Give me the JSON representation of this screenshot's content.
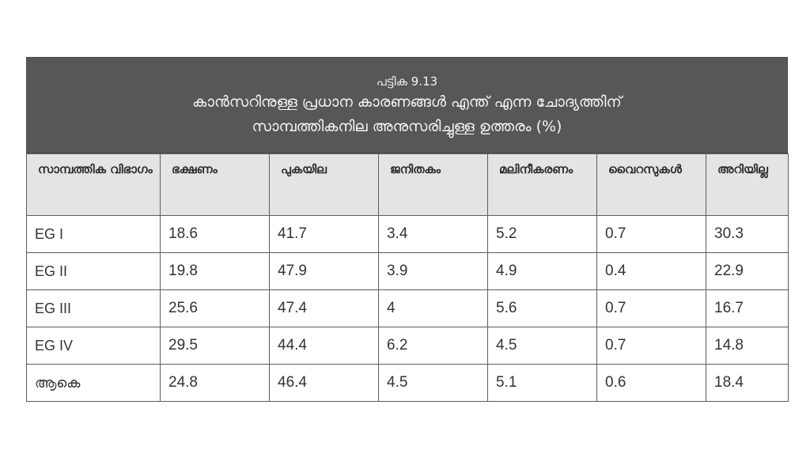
{
  "table": {
    "number_label": "പട്ടിക 9.13",
    "title_line1": "കാൻസറിനുള്ള പ്രധാന കാരണങ്ങൾ എന്ത് എന്ന ചോദ്യത്തിന്",
    "title_line2": "സാമ്പത്തികനില അനുസരിച്ചുള്ള ഉത്തരം (%)",
    "columns": [
      "സാമ്പത്തിക വിഭാഗം",
      "ഭക്ഷണം",
      "പുകയില",
      "ജനിതകം",
      "മലിനീകരണം",
      "വൈറസുകൾ",
      "അറിയില്ല"
    ],
    "rows": [
      [
        "EG I",
        "18.6",
        "41.7",
        "3.4",
        "5.2",
        "0.7",
        "30.3"
      ],
      [
        "EG II",
        "19.8",
        "47.9",
        "3.9",
        "4.9",
        "0.4",
        "22.9"
      ],
      [
        "EG III",
        "25.6",
        "47.4",
        "4",
        "5.6",
        "0.7",
        "16.7"
      ],
      [
        "EG IV",
        "29.5",
        "44.4",
        "6.2",
        "4.5",
        "0.7",
        "14.8"
      ],
      [
        "ആകെ",
        "24.8",
        "46.4",
        "4.5",
        "5.1",
        "0.6",
        "18.4"
      ]
    ]
  },
  "colors": {
    "title_band_bg": "#575759",
    "title_text": "#f4f4f4",
    "header_bg": "#e3e4e6",
    "border": "#5c5c5c"
  }
}
